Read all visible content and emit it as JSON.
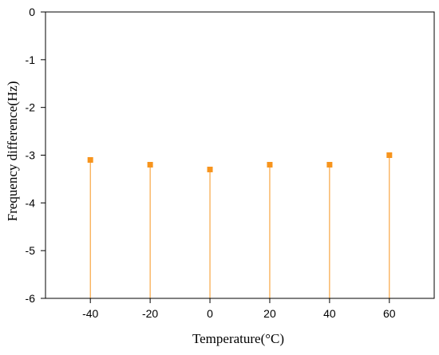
{
  "chart_data": {
    "type": "scatter",
    "style": "stem",
    "title": "",
    "xlabel": "Temperature(°C)",
    "ylabel": "Frequency difference(Hz)",
    "xlim": [
      -55,
      75
    ],
    "ylim": [
      -6,
      0
    ],
    "x_ticks": [
      -40,
      -20,
      0,
      20,
      40,
      60
    ],
    "y_ticks": [
      0,
      -1,
      -2,
      -3,
      -4,
      -5,
      -6
    ],
    "grid": false,
    "legend": "none",
    "series": [
      {
        "x": [
          -40,
          -20,
          0,
          20,
          40,
          60
        ],
        "y": [
          -3.1,
          -3.2,
          -3.3,
          -3.2,
          -3.2,
          -3.0
        ],
        "color": "#f7941d",
        "marker": "square"
      }
    ]
  }
}
